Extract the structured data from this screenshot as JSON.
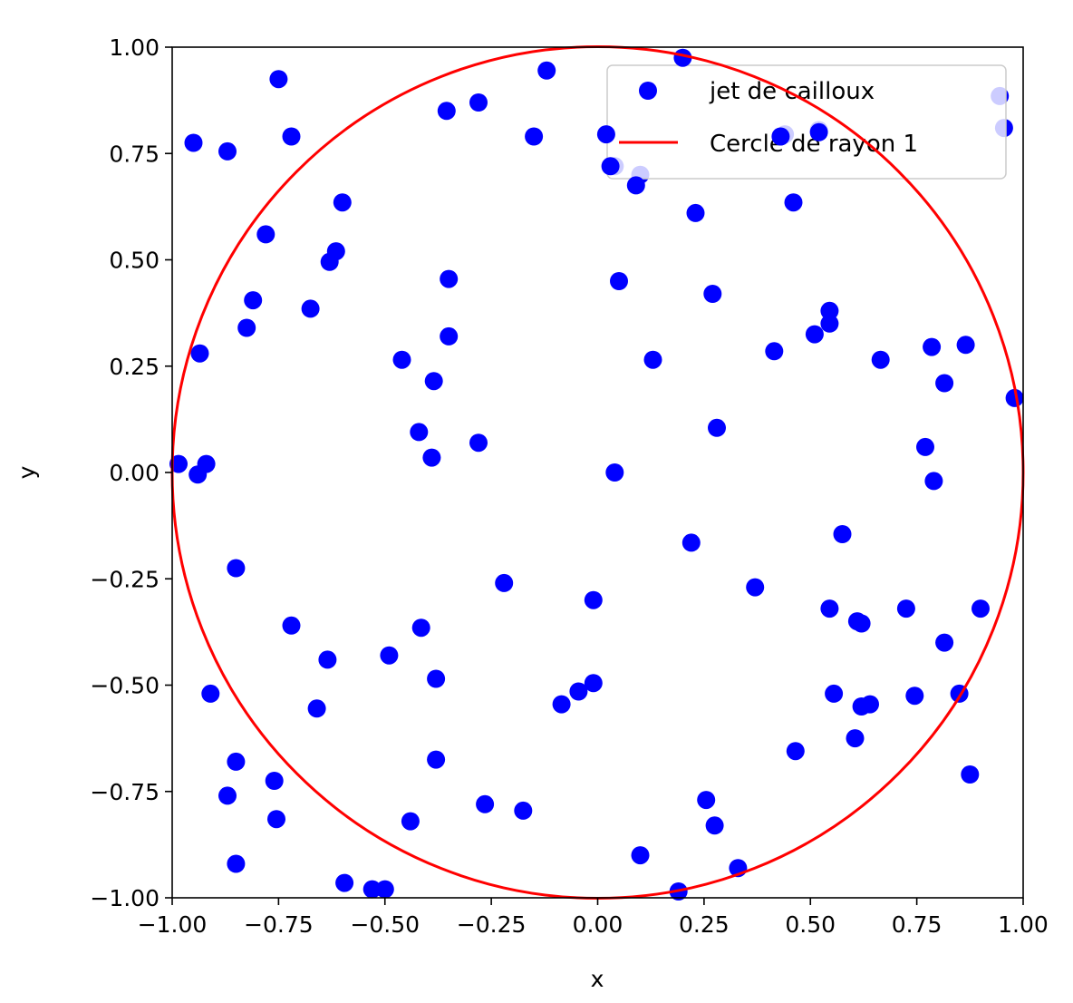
{
  "chart_data": {
    "type": "scatter",
    "xlabel": "x",
    "ylabel": "y",
    "xlim": [
      -1.0,
      1.0
    ],
    "ylim": [
      -1.0,
      1.0
    ],
    "xticks": [
      "−1.00",
      "−0.75",
      "−0.50",
      "−0.25",
      "0.00",
      "0.25",
      "0.50",
      "0.75",
      "1.00"
    ],
    "yticks": [
      "−1.00",
      "−0.75",
      "−0.50",
      "−0.25",
      "0.00",
      "0.25",
      "0.50",
      "0.75",
      "1.00"
    ],
    "grid": false,
    "legend": {
      "placement": "top-right",
      "entries": [
        "jet de cailloux",
        "Cercle de rayon 1"
      ]
    },
    "circle": {
      "name": "Cercle de rayon 1",
      "radius": 1,
      "center": [
        0,
        0
      ],
      "color": "#ff0000"
    },
    "series": [
      {
        "name": "jet de cailloux",
        "color": "#0000ff",
        "points": [
          [
            -0.75,
            0.925
          ],
          [
            -0.95,
            0.775
          ],
          [
            -0.87,
            0.755
          ],
          [
            -0.72,
            0.79
          ],
          [
            -0.6,
            0.635
          ],
          [
            -0.78,
            0.56
          ],
          [
            -0.615,
            0.52
          ],
          [
            -0.63,
            0.495
          ],
          [
            -0.81,
            0.405
          ],
          [
            -0.675,
            0.385
          ],
          [
            -0.825,
            0.34
          ],
          [
            -0.935,
            0.28
          ],
          [
            -0.355,
            0.85
          ],
          [
            -0.28,
            0.87
          ],
          [
            -0.12,
            0.945
          ],
          [
            -0.15,
            0.79
          ],
          [
            0.02,
            0.795
          ],
          [
            0.03,
            0.72
          ],
          [
            0.09,
            0.675
          ],
          [
            0.2,
            0.975
          ],
          [
            0.23,
            0.61
          ],
          [
            0.46,
            0.635
          ],
          [
            0.52,
            0.8
          ],
          [
            0.43,
            0.79
          ],
          [
            -0.35,
            0.455
          ],
          [
            0.05,
            0.45
          ],
          [
            0.27,
            0.42
          ],
          [
            -0.35,
            0.32
          ],
          [
            -0.46,
            0.265
          ],
          [
            -0.385,
            0.215
          ],
          [
            0.13,
            0.265
          ],
          [
            0.415,
            0.285
          ],
          [
            0.51,
            0.325
          ],
          [
            0.545,
            0.38
          ],
          [
            0.545,
            0.35
          ],
          [
            0.665,
            0.265
          ],
          [
            0.785,
            0.295
          ],
          [
            0.865,
            0.3
          ],
          [
            0.815,
            0.21
          ],
          [
            0.98,
            0.175
          ],
          [
            0.28,
            0.105
          ],
          [
            -0.42,
            0.095
          ],
          [
            -0.39,
            0.035
          ],
          [
            -0.28,
            0.07
          ],
          [
            0.04,
            0.0
          ],
          [
            0.77,
            0.06
          ],
          [
            0.79,
            -0.02
          ],
          [
            -0.985,
            0.02
          ],
          [
            -0.92,
            0.02
          ],
          [
            -0.94,
            -0.005
          ],
          [
            0.22,
            -0.165
          ],
          [
            0.575,
            -0.145
          ],
          [
            -0.85,
            -0.225
          ],
          [
            -0.22,
            -0.26
          ],
          [
            0.37,
            -0.27
          ],
          [
            -0.01,
            -0.3
          ],
          [
            0.545,
            -0.32
          ],
          [
            0.725,
            -0.32
          ],
          [
            0.9,
            -0.32
          ],
          [
            -0.72,
            -0.36
          ],
          [
            -0.415,
            -0.365
          ],
          [
            0.61,
            -0.35
          ],
          [
            0.62,
            -0.355
          ],
          [
            0.815,
            -0.4
          ],
          [
            -0.635,
            -0.44
          ],
          [
            -0.49,
            -0.43
          ],
          [
            -0.38,
            -0.485
          ],
          [
            -0.01,
            -0.495
          ],
          [
            -0.045,
            -0.515
          ],
          [
            -0.085,
            -0.545
          ],
          [
            -0.91,
            -0.52
          ],
          [
            -0.66,
            -0.555
          ],
          [
            0.555,
            -0.52
          ],
          [
            0.62,
            -0.55
          ],
          [
            0.64,
            -0.545
          ],
          [
            0.745,
            -0.525
          ],
          [
            0.85,
            -0.52
          ],
          [
            0.605,
            -0.625
          ],
          [
            0.465,
            -0.655
          ],
          [
            0.875,
            -0.71
          ],
          [
            -0.85,
            -0.68
          ],
          [
            -0.38,
            -0.675
          ],
          [
            -0.76,
            -0.725
          ],
          [
            -0.87,
            -0.76
          ],
          [
            -0.755,
            -0.815
          ],
          [
            -0.44,
            -0.82
          ],
          [
            -0.265,
            -0.78
          ],
          [
            -0.175,
            -0.795
          ],
          [
            0.255,
            -0.77
          ],
          [
            0.275,
            -0.83
          ],
          [
            0.1,
            -0.9
          ],
          [
            -0.85,
            -0.92
          ],
          [
            0.33,
            -0.93
          ],
          [
            -0.595,
            -0.965
          ],
          [
            -0.53,
            -0.98
          ],
          [
            -0.5,
            -0.98
          ],
          [
            0.19,
            -0.985
          ]
        ]
      },
      {
        "name": "jet de cailloux (behind legend)",
        "color": "#0000ff",
        "behind_legend": true,
        "points": [
          [
            0.945,
            0.885
          ],
          [
            0.955,
            0.81
          ],
          [
            0.1,
            0.7
          ],
          [
            0.04,
            0.72
          ],
          [
            0.44,
            0.795
          ],
          [
            0.52,
            0.805
          ]
        ]
      }
    ]
  }
}
